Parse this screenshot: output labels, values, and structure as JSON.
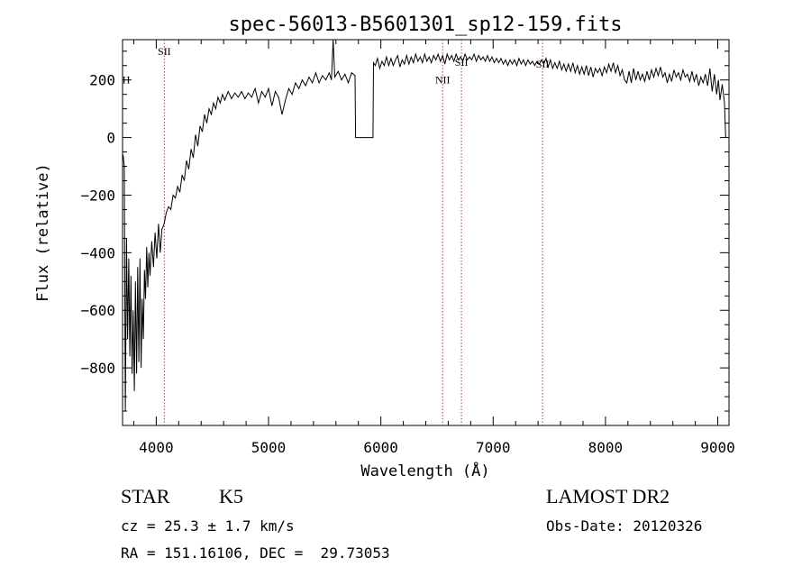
{
  "chart_data": {
    "type": "line",
    "title": "spec-56013-B5601301_sp12-159.fits",
    "xlabel": "Wavelength (Å)",
    "ylabel": "Flux (relative)",
    "xlim": [
      3700,
      9100
    ],
    "ylim": [
      -1000,
      340
    ],
    "x_ticks": [
      4000,
      5000,
      6000,
      7000,
      8000,
      9000
    ],
    "y_ticks": [
      -800,
      -600,
      -400,
      -200,
      0,
      200
    ],
    "grid": false,
    "series": [
      {
        "color": "#000000",
        "points": [
          [
            3705,
            -60
          ],
          [
            3715,
            -100
          ],
          [
            3725,
            -950
          ],
          [
            3735,
            -350
          ],
          [
            3745,
            -700
          ],
          [
            3755,
            -420
          ],
          [
            3765,
            -760
          ],
          [
            3775,
            -480
          ],
          [
            3785,
            -820
          ],
          [
            3795,
            -600
          ],
          [
            3805,
            -880
          ],
          [
            3815,
            -500
          ],
          [
            3825,
            -820
          ],
          [
            3835,
            -450
          ],
          [
            3845,
            -780
          ],
          [
            3855,
            -420
          ],
          [
            3865,
            -800
          ],
          [
            3875,
            -560
          ],
          [
            3885,
            -700
          ],
          [
            3895,
            -460
          ],
          [
            3905,
            -560
          ],
          [
            3915,
            -380
          ],
          [
            3925,
            -520
          ],
          [
            3935,
            -400
          ],
          [
            3945,
            -480
          ],
          [
            3960,
            -360
          ],
          [
            3975,
            -450
          ],
          [
            3990,
            -330
          ],
          [
            4005,
            -420
          ],
          [
            4020,
            -300
          ],
          [
            4035,
            -400
          ],
          [
            4050,
            -320
          ],
          [
            4070,
            -300
          ],
          [
            4090,
            -260
          ],
          [
            4110,
            -240
          ],
          [
            4130,
            -250
          ],
          [
            4150,
            -200
          ],
          [
            4170,
            -210
          ],
          [
            4190,
            -170
          ],
          [
            4210,
            -190
          ],
          [
            4230,
            -130
          ],
          [
            4250,
            -150
          ],
          [
            4270,
            -80
          ],
          [
            4290,
            -110
          ],
          [
            4310,
            -40
          ],
          [
            4330,
            -70
          ],
          [
            4350,
            10
          ],
          [
            4370,
            -30
          ],
          [
            4390,
            40
          ],
          [
            4410,
            20
          ],
          [
            4430,
            80
          ],
          [
            4450,
            50
          ],
          [
            4470,
            100
          ],
          [
            4490,
            80
          ],
          [
            4510,
            120
          ],
          [
            4530,
            100
          ],
          [
            4550,
            140
          ],
          [
            4570,
            120
          ],
          [
            4590,
            150
          ],
          [
            4610,
            130
          ],
          [
            4640,
            160
          ],
          [
            4670,
            135
          ],
          [
            4700,
            155
          ],
          [
            4730,
            140
          ],
          [
            4760,
            160
          ],
          [
            4790,
            135
          ],
          [
            4820,
            155
          ],
          [
            4850,
            140
          ],
          [
            4880,
            170
          ],
          [
            4910,
            120
          ],
          [
            4940,
            160
          ],
          [
            4970,
            140
          ],
          [
            5000,
            170
          ],
          [
            5030,
            110
          ],
          [
            5060,
            160
          ],
          [
            5090,
            140
          ],
          [
            5120,
            80
          ],
          [
            5150,
            130
          ],
          [
            5180,
            170
          ],
          [
            5210,
            150
          ],
          [
            5240,
            190
          ],
          [
            5270,
            170
          ],
          [
            5300,
            200
          ],
          [
            5330,
            180
          ],
          [
            5360,
            210
          ],
          [
            5390,
            190
          ],
          [
            5420,
            225
          ],
          [
            5450,
            190
          ],
          [
            5480,
            215
          ],
          [
            5510,
            200
          ],
          [
            5540,
            225
          ],
          [
            5560,
            200
          ],
          [
            5575,
            340
          ],
          [
            5590,
            210
          ],
          [
            5620,
            230
          ],
          [
            5650,
            200
          ],
          [
            5680,
            220
          ],
          [
            5710,
            190
          ],
          [
            5740,
            225
          ],
          [
            5770,
            215
          ],
          [
            5775,
            0
          ],
          [
            5800,
            0
          ],
          [
            5850,
            0
          ],
          [
            5900,
            0
          ],
          [
            5930,
            0
          ],
          [
            5935,
            260
          ],
          [
            5950,
            250
          ],
          [
            5970,
            275
          ],
          [
            5990,
            240
          ],
          [
            6010,
            265
          ],
          [
            6030,
            250
          ],
          [
            6050,
            280
          ],
          [
            6070,
            250
          ],
          [
            6090,
            275
          ],
          [
            6110,
            250
          ],
          [
            6130,
            270
          ],
          [
            6150,
            285
          ],
          [
            6170,
            245
          ],
          [
            6190,
            270
          ],
          [
            6210,
            255
          ],
          [
            6230,
            285
          ],
          [
            6250,
            255
          ],
          [
            6270,
            280
          ],
          [
            6290,
            260
          ],
          [
            6310,
            290
          ],
          [
            6330,
            265
          ],
          [
            6350,
            280
          ],
          [
            6370,
            260
          ],
          [
            6390,
            290
          ],
          [
            6410,
            265
          ],
          [
            6430,
            280
          ],
          [
            6450,
            260
          ],
          [
            6470,
            285
          ],
          [
            6490,
            270
          ],
          [
            6510,
            290
          ],
          [
            6530,
            265
          ],
          [
            6550,
            285
          ],
          [
            6570,
            255
          ],
          [
            6590,
            290
          ],
          [
            6610,
            270
          ],
          [
            6630,
            285
          ],
          [
            6650,
            265
          ],
          [
            6670,
            290
          ],
          [
            6690,
            270
          ],
          [
            6710,
            280
          ],
          [
            6730,
            265
          ],
          [
            6750,
            290
          ],
          [
            6770,
            270
          ],
          [
            6790,
            280
          ],
          [
            6810,
            270
          ],
          [
            6830,
            290
          ],
          [
            6850,
            265
          ],
          [
            6870,
            285
          ],
          [
            6890,
            270
          ],
          [
            6910,
            280
          ],
          [
            6930,
            265
          ],
          [
            6950,
            285
          ],
          [
            6970,
            265
          ],
          [
            6990,
            280
          ],
          [
            7010,
            260
          ],
          [
            7030,
            275
          ],
          [
            7050,
            260
          ],
          [
            7070,
            275
          ],
          [
            7090,
            255
          ],
          [
            7110,
            270
          ],
          [
            7130,
            250
          ],
          [
            7150,
            270
          ],
          [
            7170,
            255
          ],
          [
            7190,
            270
          ],
          [
            7210,
            250
          ],
          [
            7230,
            275
          ],
          [
            7250,
            255
          ],
          [
            7270,
            270
          ],
          [
            7290,
            250
          ],
          [
            7310,
            270
          ],
          [
            7330,
            255
          ],
          [
            7350,
            265
          ],
          [
            7370,
            250
          ],
          [
            7390,
            265
          ],
          [
            7410,
            255
          ],
          [
            7430,
            270
          ],
          [
            7450,
            255
          ],
          [
            7470,
            275
          ],
          [
            7490,
            245
          ],
          [
            7510,
            270
          ],
          [
            7530,
            240
          ],
          [
            7550,
            260
          ],
          [
            7570,
            240
          ],
          [
            7590,
            265
          ],
          [
            7610,
            235
          ],
          [
            7630,
            255
          ],
          [
            7650,
            230
          ],
          [
            7670,
            255
          ],
          [
            7690,
            230
          ],
          [
            7710,
            260
          ],
          [
            7730,
            225
          ],
          [
            7750,
            250
          ],
          [
            7770,
            220
          ],
          [
            7790,
            245
          ],
          [
            7810,
            220
          ],
          [
            7830,
            250
          ],
          [
            7850,
            215
          ],
          [
            7870,
            245
          ],
          [
            7890,
            210
          ],
          [
            7910,
            240
          ],
          [
            7930,
            225
          ],
          [
            7950,
            240
          ],
          [
            7970,
            215
          ],
          [
            7990,
            245
          ],
          [
            8010,
            225
          ],
          [
            8030,
            255
          ],
          [
            8050,
            230
          ],
          [
            8070,
            260
          ],
          [
            8090,
            225
          ],
          [
            8110,
            250
          ],
          [
            8130,
            215
          ],
          [
            8150,
            235
          ],
          [
            8170,
            200
          ],
          [
            8190,
            190
          ],
          [
            8210,
            230
          ],
          [
            8230,
            190
          ],
          [
            8250,
            240
          ],
          [
            8270,
            200
          ],
          [
            8290,
            230
          ],
          [
            8310,
            200
          ],
          [
            8330,
            220
          ],
          [
            8350,
            195
          ],
          [
            8370,
            230
          ],
          [
            8390,
            200
          ],
          [
            8410,
            235
          ],
          [
            8430,
            210
          ],
          [
            8450,
            240
          ],
          [
            8470,
            215
          ],
          [
            8490,
            245
          ],
          [
            8510,
            210
          ],
          [
            8530,
            225
          ],
          [
            8550,
            190
          ],
          [
            8570,
            220
          ],
          [
            8590,
            195
          ],
          [
            8610,
            235
          ],
          [
            8630,
            210
          ],
          [
            8650,
            225
          ],
          [
            8670,
            200
          ],
          [
            8690,
            235
          ],
          [
            8710,
            210
          ],
          [
            8730,
            220
          ],
          [
            8750,
            195
          ],
          [
            8770,
            230
          ],
          [
            8790,
            195
          ],
          [
            8810,
            220
          ],
          [
            8830,
            180
          ],
          [
            8850,
            210
          ],
          [
            8870,
            190
          ],
          [
            8890,
            220
          ],
          [
            8910,
            180
          ],
          [
            8930,
            240
          ],
          [
            8950,
            160
          ],
          [
            8970,
            220
          ],
          [
            8990,
            150
          ],
          [
            9005,
            200
          ],
          [
            9020,
            130
          ],
          [
            9040,
            185
          ],
          [
            9060,
            120
          ],
          [
            9070,
            0
          ]
        ]
      }
    ],
    "annotations": [
      {
        "text": "SII",
        "x": 4072,
        "line": true,
        "label_y": 300
      },
      {
        "text": "H",
        "x": 3733,
        "line": false,
        "label_y": 200
      },
      {
        "text": "NII",
        "x": 6550,
        "line": true,
        "label_y": 200
      },
      {
        "text": "SII",
        "x": 6718,
        "line": true,
        "label_y": 262
      },
      {
        "text": "SII",
        "x": 7440,
        "line": true,
        "label_y": 255
      }
    ]
  },
  "info": {
    "class": "STAR",
    "subclass": "K5",
    "survey": "LAMOST DR2",
    "cz": "cz = 25.3 ± 1.7 km/s",
    "obs_date": "Obs-Date: 20120326",
    "coords": "RA = 151.16106, DEC =  29.73053"
  }
}
